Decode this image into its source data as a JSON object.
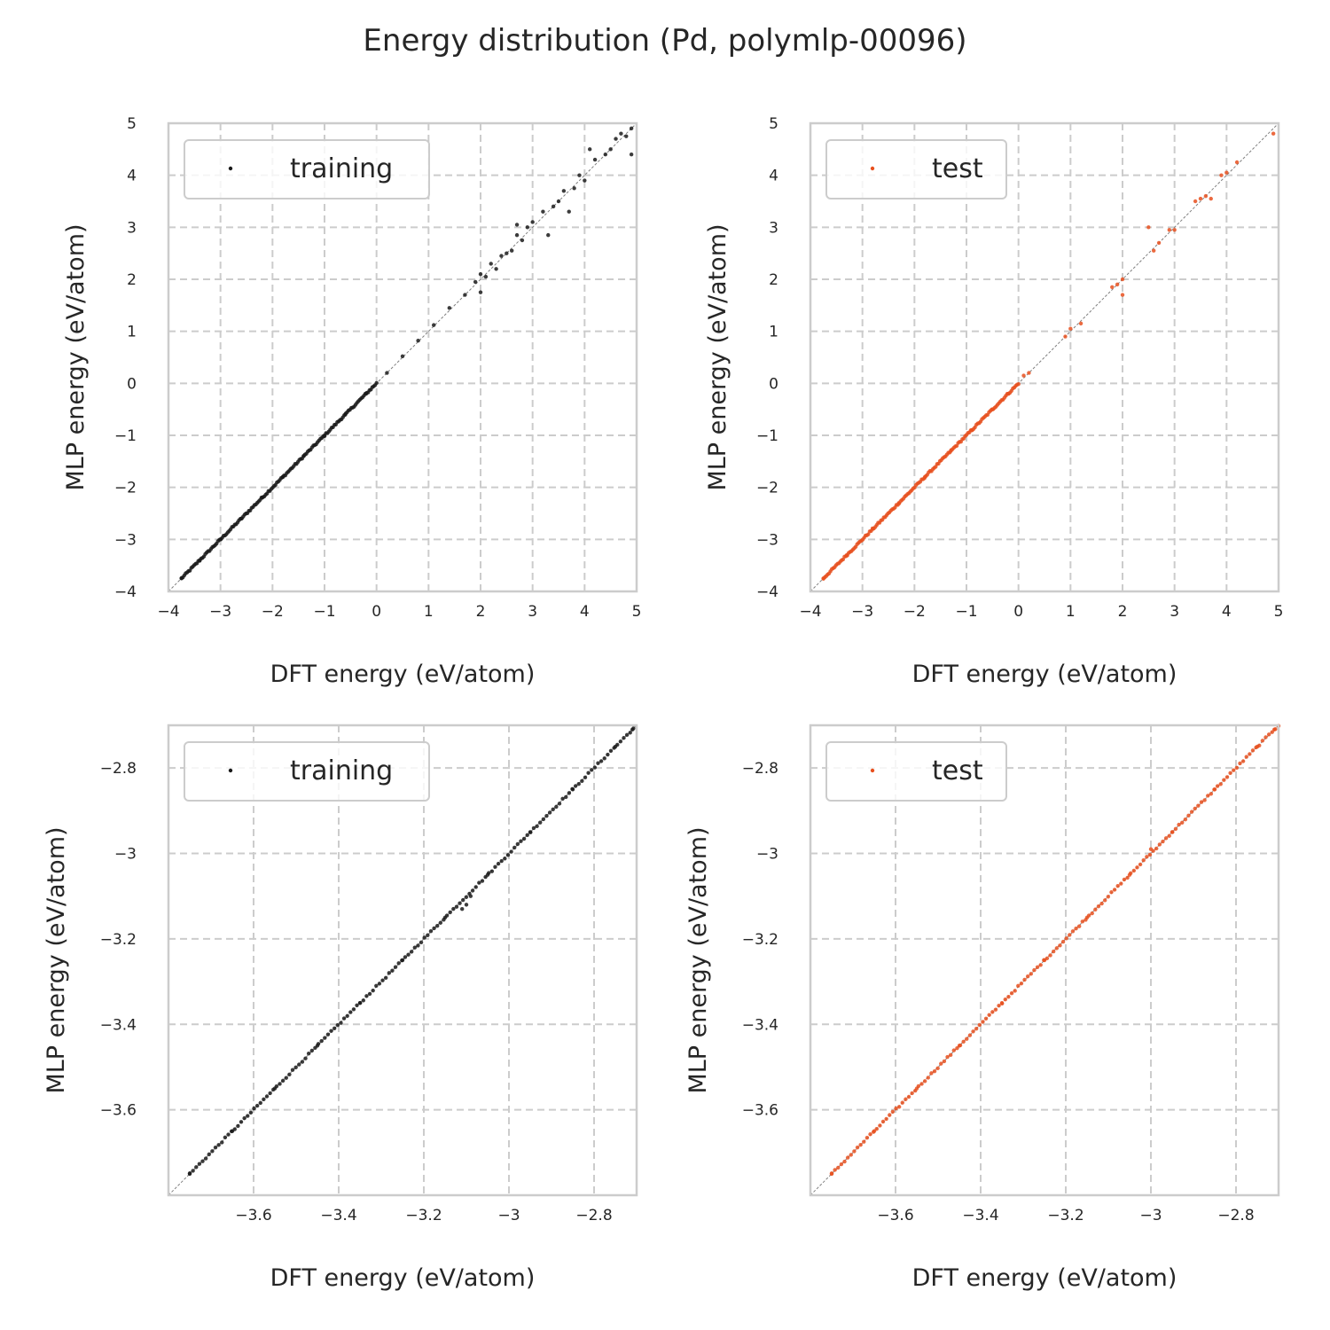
{
  "title": "Energy distribution (Pd, polymlp-00096)",
  "colors": {
    "training": "#1a1a1a",
    "test": "#e8501e",
    "grid": "#cccccc",
    "frame": "#cccccc",
    "diag": "#808080"
  },
  "chart_data": [
    {
      "type": "scatter",
      "panel": "top-left",
      "xlabel": "DFT energy (eV/atom)",
      "ylabel": "MLP energy (eV/atom)",
      "xlim": [
        -4,
        5
      ],
      "ylim": [
        -4,
        5
      ],
      "xticks": [
        -4,
        -3,
        -2,
        -1,
        0,
        1,
        2,
        3,
        4,
        5
      ],
      "yticks": [
        -4,
        -3,
        -2,
        -1,
        0,
        1,
        2,
        3,
        4,
        5
      ],
      "grid": true,
      "legend_position": "top-left",
      "series": [
        {
          "name": "training",
          "color": "training",
          "points": [
            [
              -3.75,
              -3.75
            ],
            [
              -3.4,
              -3.4
            ],
            [
              -3.0,
              -3.0
            ],
            [
              -2.6,
              -2.6
            ],
            [
              -2.2,
              -2.2
            ],
            [
              -1.8,
              -1.8
            ],
            [
              -1.4,
              -1.4
            ],
            [
              -1.0,
              -1.0
            ],
            [
              -0.6,
              -0.6
            ],
            [
              -0.2,
              -0.2
            ],
            [
              0.2,
              0.2
            ],
            [
              0.5,
              0.52
            ],
            [
              0.8,
              0.82
            ],
            [
              1.1,
              1.12
            ],
            [
              1.4,
              1.45
            ],
            [
              1.7,
              1.7
            ],
            [
              1.9,
              1.95
            ],
            [
              2.0,
              2.1
            ],
            [
              2.1,
              2.05
            ],
            [
              2.2,
              2.3
            ],
            [
              2.3,
              2.2
            ],
            [
              2.4,
              2.45
            ],
            [
              2.5,
              2.5
            ],
            [
              2.6,
              2.55
            ],
            [
              2.7,
              2.85
            ],
            [
              2.8,
              2.75
            ],
            [
              2.9,
              3.0
            ],
            [
              3.0,
              3.1
            ],
            [
              3.2,
              3.3
            ],
            [
              3.4,
              3.4
            ],
            [
              3.5,
              3.5
            ],
            [
              3.6,
              3.7
            ],
            [
              3.8,
              3.75
            ],
            [
              3.9,
              4.0
            ],
            [
              4.0,
              3.9
            ],
            [
              4.2,
              4.3
            ],
            [
              4.4,
              4.4
            ],
            [
              4.5,
              4.5
            ],
            [
              4.6,
              4.7
            ],
            [
              4.7,
              4.8
            ],
            [
              4.8,
              4.75
            ],
            [
              4.9,
              4.9
            ],
            [
              2.0,
              1.75
            ],
            [
              2.7,
              3.05
            ],
            [
              3.3,
              2.85
            ],
            [
              4.1,
              4.5
            ],
            [
              4.9,
              4.4
            ],
            [
              3.7,
              3.3
            ]
          ]
        }
      ]
    },
    {
      "type": "scatter",
      "panel": "top-right",
      "xlabel": "DFT energy (eV/atom)",
      "ylabel": "MLP energy (eV/atom)",
      "xlim": [
        -4,
        5
      ],
      "ylim": [
        -4,
        5
      ],
      "xticks": [
        -4,
        -3,
        -2,
        -1,
        0,
        1,
        2,
        3,
        4,
        5
      ],
      "yticks": [
        -4,
        -3,
        -2,
        -1,
        0,
        1,
        2,
        3,
        4,
        5
      ],
      "grid": true,
      "legend_position": "top-left",
      "series": [
        {
          "name": "test",
          "color": "test",
          "points": [
            [
              -3.75,
              -3.75
            ],
            [
              -3.3,
              -3.3
            ],
            [
              -2.8,
              -2.8
            ],
            [
              -2.3,
              -2.3
            ],
            [
              -1.8,
              -1.8
            ],
            [
              -1.3,
              -1.3
            ],
            [
              -0.9,
              -0.9
            ],
            [
              -0.5,
              -0.5
            ],
            [
              -0.2,
              -0.2
            ],
            [
              0.1,
              0.15
            ],
            [
              0.2,
              0.2
            ],
            [
              0.9,
              0.9
            ],
            [
              1.0,
              1.05
            ],
            [
              1.2,
              1.15
            ],
            [
              1.8,
              1.85
            ],
            [
              1.9,
              1.9
            ],
            [
              2.0,
              2.0
            ],
            [
              2.0,
              1.7
            ],
            [
              2.5,
              3.0
            ],
            [
              2.6,
              2.55
            ],
            [
              2.7,
              2.7
            ],
            [
              2.9,
              2.95
            ],
            [
              3.0,
              2.95
            ],
            [
              3.4,
              3.5
            ],
            [
              3.5,
              3.55
            ],
            [
              3.6,
              3.6
            ],
            [
              3.7,
              3.55
            ],
            [
              3.9,
              4.0
            ],
            [
              4.0,
              4.05
            ],
            [
              4.2,
              4.25
            ],
            [
              4.9,
              4.8
            ]
          ]
        }
      ]
    },
    {
      "type": "scatter",
      "panel": "bottom-left",
      "xlabel": "DFT energy (eV/atom)",
      "ylabel": "MLP energy (eV/atom)",
      "xlim": [
        -3.8,
        -2.7
      ],
      "ylim": [
        -3.8,
        -2.7
      ],
      "xticks": [
        -3.6,
        -3.4,
        -3.2,
        -3.0,
        -2.8
      ],
      "yticks": [
        -3.6,
        -3.4,
        -3.2,
        -3.0,
        -2.8
      ],
      "grid": true,
      "legend_position": "top-left",
      "series": [
        {
          "name": "training",
          "color": "training",
          "points": [
            [
              -3.75,
              -3.75
            ],
            [
              -3.65,
              -3.65
            ],
            [
              -3.55,
              -3.55
            ],
            [
              -3.45,
              -3.45
            ],
            [
              -3.35,
              -3.35
            ],
            [
              -3.25,
              -3.25
            ],
            [
              -3.15,
              -3.15
            ],
            [
              -3.11,
              -3.13
            ],
            [
              -3.1,
              -3.12
            ],
            [
              -3.09,
              -3.1
            ],
            [
              -3.05,
              -3.05
            ],
            [
              -2.95,
              -2.95
            ],
            [
              -2.85,
              -2.85
            ],
            [
              -2.75,
              -2.75
            ],
            [
              -2.71,
              -2.71
            ]
          ]
        }
      ]
    },
    {
      "type": "scatter",
      "panel": "bottom-right",
      "xlabel": "DFT energy (eV/atom)",
      "ylabel": "MLP energy (eV/atom)",
      "xlim": [
        -3.8,
        -2.7
      ],
      "ylim": [
        -3.8,
        -2.7
      ],
      "xticks": [
        -3.6,
        -3.4,
        -3.2,
        -3.0,
        -2.8
      ],
      "yticks": [
        -3.6,
        -3.4,
        -3.2,
        -3.0,
        -2.8
      ],
      "grid": true,
      "legend_position": "top-left",
      "series": [
        {
          "name": "test",
          "color": "test",
          "points": [
            [
              -3.75,
              -3.75
            ],
            [
              -3.65,
              -3.65
            ],
            [
              -3.55,
              -3.55
            ],
            [
              -3.45,
              -3.45
            ],
            [
              -3.35,
              -3.35
            ],
            [
              -3.25,
              -3.25
            ],
            [
              -3.15,
              -3.15
            ],
            [
              -3.05,
              -3.05
            ],
            [
              -3.0,
              -2.99
            ],
            [
              -2.95,
              -2.95
            ],
            [
              -2.85,
              -2.85
            ],
            [
              -2.75,
              -2.75
            ],
            [
              -2.71,
              -2.71
            ]
          ]
        }
      ]
    }
  ]
}
